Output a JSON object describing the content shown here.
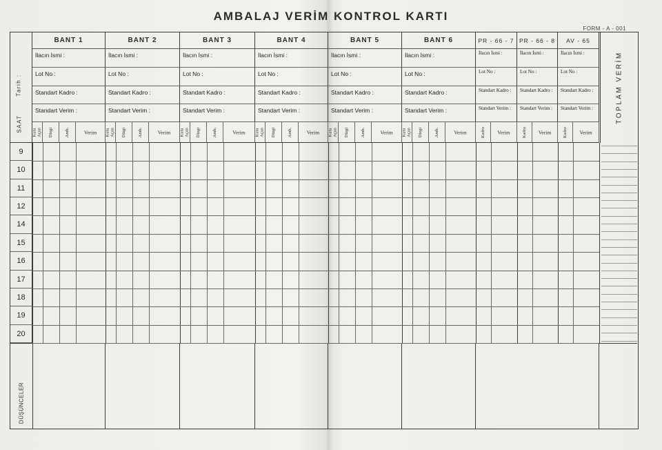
{
  "title": "AMBALAJ VERİM KONTROL KARTI",
  "form_no": "FORM - A - 001",
  "left_labels": {
    "date": "Tarih :",
    "hour": "SAAT"
  },
  "total_label": "TOPLAM VERİM",
  "remarks_label": "DÜŞÜNCELER",
  "bands": [
    {
      "name": "BANT 1",
      "drug_name": "İlacın İsmi :",
      "lot_no": "Lot No :",
      "std_staff": "Standart Kadro :",
      "std_yield": "Standart Verim :"
    },
    {
      "name": "BANT 2",
      "drug_name": "İlacın İsmi :",
      "lot_no": "Lot No :",
      "std_staff": "Standart Kadro :",
      "std_yield": "Standart Verim :"
    },
    {
      "name": "BANT 3",
      "drug_name": "İlacın İsmi :",
      "lot_no": "Lot No :",
      "std_staff": "Standart Kadro :",
      "std_yield": "Standart Verim :"
    },
    {
      "name": "BANT 4",
      "drug_name": "İlacın İsmi :",
      "lot_no": "Lot No :",
      "std_staff": "Standart Kadro :",
      "std_yield": "Standart Verim :"
    },
    {
      "name": "BANT 5",
      "drug_name": "İlacın İsmi :",
      "lot_no": "Lot No :",
      "std_staff": "Standart Kadro :",
      "std_yield": "Standart Verim :"
    },
    {
      "name": "BANT 6",
      "drug_name": "İlacın İsmi :",
      "lot_no": "Lot No :",
      "std_staff": "Standart Kadro :",
      "std_yield": "Standart Verim :"
    }
  ],
  "band_columns": [
    "Kutu Açan",
    "Dizgi",
    "Amb.",
    "Verim"
  ],
  "machines": [
    {
      "name": "PR - 66 - 7",
      "drug_name": "İlacın İsmi :",
      "lot_no": "Lot No :",
      "std_staff": "Standart Kadro :",
      "std_yield": "Standart Verim :"
    },
    {
      "name": "PR - 66 - 8",
      "drug_name": "İlacın İsmi :",
      "lot_no": "Lot No :",
      "std_staff": "Standart Kadro :",
      "std_yield": "Standart Verim :"
    },
    {
      "name": "AV - 65",
      "drug_name": "İlacın İsmi :",
      "lot_no": "Lot No :",
      "std_staff": "Standart Kadro :",
      "std_yield": "Standart Verim :"
    }
  ],
  "machine_columns": [
    "Kadro",
    "Verim"
  ],
  "hours": [
    "9",
    "10",
    "11",
    "12",
    "14",
    "15",
    "16",
    "17",
    "18",
    "19",
    "20"
  ]
}
